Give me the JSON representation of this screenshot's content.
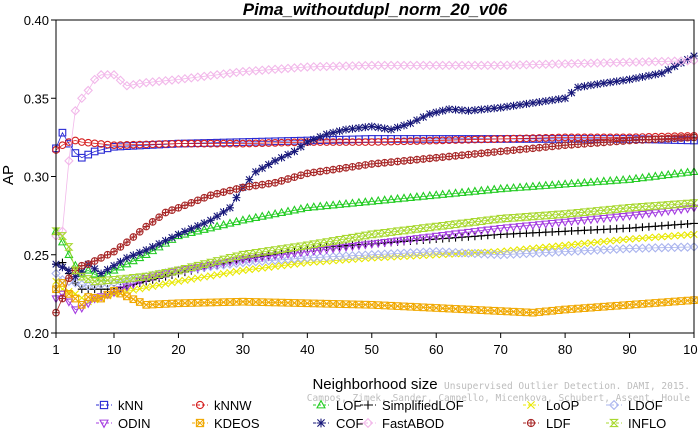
{
  "chart_data": {
    "type": "line",
    "title": "Pima_withoutdupl_norm_20_v06",
    "xlabel": "Neighborhood size",
    "ylabel": "AP",
    "xlim": [
      1,
      100
    ],
    "ylim": [
      0.2,
      0.4
    ],
    "xticks": [
      1,
      10,
      20,
      30,
      40,
      50,
      60,
      70,
      80,
      90,
      100
    ],
    "yticks": [
      0.2,
      0.25,
      0.3,
      0.35,
      0.4
    ],
    "ytick_labels": [
      "0.20",
      "0.25",
      "0.30",
      "0.35",
      "0.40"
    ],
    "grid": false,
    "legend_position": "bottom",
    "series": [
      {
        "name": "kNN",
        "color": "#2a2ad4",
        "marker": "square",
        "points": [
          [
            1,
            0.318
          ],
          [
            2,
            0.328
          ],
          [
            3,
            0.321
          ],
          [
            4,
            0.315
          ],
          [
            5,
            0.312
          ],
          [
            7,
            0.316
          ],
          [
            10,
            0.319
          ],
          [
            20,
            0.321
          ],
          [
            30,
            0.322
          ],
          [
            40,
            0.323
          ],
          [
            50,
            0.324
          ],
          [
            60,
            0.324
          ],
          [
            70,
            0.324
          ],
          [
            80,
            0.324
          ],
          [
            90,
            0.324
          ],
          [
            100,
            0.323
          ]
        ]
      },
      {
        "name": "kNNW",
        "color": "#d62020",
        "marker": "circle",
        "points": [
          [
            1,
            0.317
          ],
          [
            2,
            0.32
          ],
          [
            3,
            0.322
          ],
          [
            4,
            0.323
          ],
          [
            5,
            0.322
          ],
          [
            10,
            0.32
          ],
          [
            20,
            0.321
          ],
          [
            30,
            0.321
          ],
          [
            40,
            0.322
          ],
          [
            50,
            0.322
          ],
          [
            60,
            0.323
          ],
          [
            70,
            0.324
          ],
          [
            80,
            0.325
          ],
          [
            90,
            0.325
          ],
          [
            100,
            0.326
          ]
        ]
      },
      {
        "name": "LOF",
        "color": "#22cc22",
        "marker": "triangle-up",
        "points": [
          [
            1,
            0.265
          ],
          [
            2,
            0.258
          ],
          [
            3,
            0.25
          ],
          [
            4,
            0.243
          ],
          [
            5,
            0.238
          ],
          [
            6,
            0.24
          ],
          [
            8,
            0.235
          ],
          [
            10,
            0.24
          ],
          [
            15,
            0.25
          ],
          [
            20,
            0.262
          ],
          [
            30,
            0.272
          ],
          [
            40,
            0.28
          ],
          [
            50,
            0.284
          ],
          [
            60,
            0.288
          ],
          [
            70,
            0.292
          ],
          [
            80,
            0.295
          ],
          [
            90,
            0.298
          ],
          [
            100,
            0.303
          ]
        ]
      },
      {
        "name": "SimplifiedLOF",
        "color": "#000000",
        "marker": "plus",
        "points": [
          [
            1,
            0.244
          ],
          [
            2,
            0.245
          ],
          [
            3,
            0.238
          ],
          [
            4,
            0.232
          ],
          [
            5,
            0.228
          ],
          [
            10,
            0.228
          ],
          [
            15,
            0.233
          ],
          [
            20,
            0.238
          ],
          [
            30,
            0.247
          ],
          [
            40,
            0.254
          ],
          [
            50,
            0.257
          ],
          [
            60,
            0.26
          ],
          [
            70,
            0.263
          ],
          [
            80,
            0.265
          ],
          [
            90,
            0.267
          ],
          [
            100,
            0.27
          ]
        ]
      },
      {
        "name": "LoOP",
        "color": "#e8e800",
        "marker": "x",
        "points": [
          [
            1,
            0.233
          ],
          [
            2,
            0.228
          ],
          [
            4,
            0.225
          ],
          [
            6,
            0.22
          ],
          [
            10,
            0.225
          ],
          [
            20,
            0.233
          ],
          [
            30,
            0.24
          ],
          [
            40,
            0.245
          ],
          [
            50,
            0.248
          ],
          [
            60,
            0.25
          ],
          [
            70,
            0.252
          ],
          [
            80,
            0.256
          ],
          [
            90,
            0.26
          ],
          [
            100,
            0.263
          ]
        ]
      },
      {
        "name": "LDOF",
        "color": "#aab4ee",
        "marker": "diamond",
        "points": [
          [
            1,
            0.238
          ],
          [
            2,
            0.234
          ],
          [
            4,
            0.232
          ],
          [
            6,
            0.23
          ],
          [
            10,
            0.232
          ],
          [
            20,
            0.24
          ],
          [
            30,
            0.245
          ],
          [
            40,
            0.248
          ],
          [
            50,
            0.25
          ],
          [
            60,
            0.252
          ],
          [
            70,
            0.25
          ],
          [
            80,
            0.252
          ],
          [
            90,
            0.254
          ],
          [
            100,
            0.255
          ]
        ]
      },
      {
        "name": "ODIN",
        "color": "#a43ce0",
        "marker": "triangle-down",
        "points": [
          [
            1,
            0.222
          ],
          [
            2,
            0.225
          ],
          [
            3,
            0.22
          ],
          [
            4,
            0.215
          ],
          [
            5,
            0.216
          ],
          [
            7,
            0.222
          ],
          [
            10,
            0.226
          ],
          [
            15,
            0.235
          ],
          [
            20,
            0.24
          ],
          [
            30,
            0.247
          ],
          [
            40,
            0.252
          ],
          [
            50,
            0.257
          ],
          [
            60,
            0.262
          ],
          [
            70,
            0.267
          ],
          [
            80,
            0.271
          ],
          [
            90,
            0.275
          ],
          [
            100,
            0.28
          ]
        ]
      },
      {
        "name": "KDEOS",
        "color": "#f0a800",
        "marker": "square-x",
        "points": [
          [
            1,
            0.228
          ],
          [
            2,
            0.232
          ],
          [
            3,
            0.225
          ],
          [
            4,
            0.222
          ],
          [
            5,
            0.218
          ],
          [
            6,
            0.223
          ],
          [
            8,
            0.222
          ],
          [
            10,
            0.227
          ],
          [
            15,
            0.218
          ],
          [
            20,
            0.219
          ],
          [
            30,
            0.22
          ],
          [
            40,
            0.219
          ],
          [
            50,
            0.218
          ],
          [
            60,
            0.216
          ],
          [
            70,
            0.214
          ],
          [
            75,
            0.213
          ],
          [
            80,
            0.215
          ],
          [
            90,
            0.218
          ],
          [
            100,
            0.221
          ]
        ]
      },
      {
        "name": "COF",
        "color": "#18187a",
        "marker": "asterisk",
        "points": [
          [
            1,
            0.244
          ],
          [
            2,
            0.242
          ],
          [
            3,
            0.24
          ],
          [
            4,
            0.236
          ],
          [
            5,
            0.239
          ],
          [
            6,
            0.244
          ],
          [
            8,
            0.238
          ],
          [
            10,
            0.243
          ],
          [
            12,
            0.248
          ],
          [
            15,
            0.253
          ],
          [
            20,
            0.263
          ],
          [
            25,
            0.272
          ],
          [
            28,
            0.28
          ],
          [
            30,
            0.293
          ],
          [
            32,
            0.303
          ],
          [
            35,
            0.31
          ],
          [
            38,
            0.316
          ],
          [
            40,
            0.322
          ],
          [
            43,
            0.327
          ],
          [
            46,
            0.33
          ],
          [
            50,
            0.332
          ],
          [
            53,
            0.33
          ],
          [
            56,
            0.334
          ],
          [
            59,
            0.34
          ],
          [
            62,
            0.343
          ],
          [
            65,
            0.342
          ],
          [
            70,
            0.344
          ],
          [
            75,
            0.347
          ],
          [
            80,
            0.35
          ],
          [
            82,
            0.357
          ],
          [
            85,
            0.359
          ],
          [
            90,
            0.362
          ],
          [
            95,
            0.366
          ],
          [
            100,
            0.377
          ]
        ]
      },
      {
        "name": "FastABOD",
        "color": "#f2b8ea",
        "marker": "diamond",
        "points": [
          [
            1,
            0.262
          ],
          [
            2,
            0.265
          ],
          [
            3,
            0.31
          ],
          [
            4,
            0.342
          ],
          [
            5,
            0.35
          ],
          [
            6,
            0.355
          ],
          [
            7,
            0.362
          ],
          [
            8,
            0.365
          ],
          [
            10,
            0.365
          ],
          [
            12,
            0.358
          ],
          [
            15,
            0.36
          ],
          [
            20,
            0.362
          ],
          [
            30,
            0.367
          ],
          [
            40,
            0.37
          ],
          [
            50,
            0.371
          ],
          [
            60,
            0.371
          ],
          [
            70,
            0.371
          ],
          [
            80,
            0.372
          ],
          [
            90,
            0.373
          ],
          [
            100,
            0.374
          ]
        ]
      },
      {
        "name": "LDF",
        "color": "#a82828",
        "marker": "circle-plus",
        "points": [
          [
            1,
            0.213
          ],
          [
            2,
            0.222
          ],
          [
            3,
            0.235
          ],
          [
            4,
            0.24
          ],
          [
            5,
            0.243
          ],
          [
            6,
            0.244
          ],
          [
            8,
            0.248
          ],
          [
            10,
            0.252
          ],
          [
            12,
            0.258
          ],
          [
            15,
            0.268
          ],
          [
            18,
            0.277
          ],
          [
            20,
            0.28
          ],
          [
            25,
            0.288
          ],
          [
            30,
            0.293
          ],
          [
            35,
            0.296
          ],
          [
            40,
            0.302
          ],
          [
            45,
            0.305
          ],
          [
            50,
            0.308
          ],
          [
            60,
            0.312
          ],
          [
            70,
            0.316
          ],
          [
            80,
            0.32
          ],
          [
            90,
            0.323
          ],
          [
            100,
            0.325
          ]
        ]
      },
      {
        "name": "INFLO",
        "color": "#a8d830",
        "marker": "hourglass",
        "points": [
          [
            1,
            0.265
          ],
          [
            2,
            0.262
          ],
          [
            3,
            0.255
          ],
          [
            4,
            0.24
          ],
          [
            5,
            0.236
          ],
          [
            7,
            0.233
          ],
          [
            10,
            0.234
          ],
          [
            15,
            0.236
          ],
          [
            20,
            0.24
          ],
          [
            30,
            0.25
          ],
          [
            40,
            0.256
          ],
          [
            50,
            0.263
          ],
          [
            60,
            0.268
          ],
          [
            70,
            0.273
          ],
          [
            80,
            0.276
          ],
          [
            90,
            0.28
          ],
          [
            100,
            0.283
          ]
        ]
      }
    ]
  },
  "credit": {
    "line1": "Unsupervised Outlier Detection. DAMI, 2015.",
    "line2": "Campos, Zimek, Sander, Campello, Micenkova, Schubert, Assent, Houle"
  }
}
